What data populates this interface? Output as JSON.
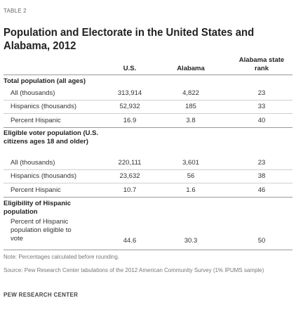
{
  "table_label": "TABLE 2",
  "title": "Population and Electorate in the United States and Alabama, 2012",
  "columns": [
    "U.S.",
    "Alabama",
    "Alabama state rank"
  ],
  "sections": [
    {
      "heading": "Total population (all ages)",
      "rows": [
        {
          "label": "All (thousands)",
          "us": "313,914",
          "alabama": "4,822",
          "rank": "23"
        },
        {
          "label": "Hispanics (thousands)",
          "us": "52,932",
          "alabama": "185",
          "rank": "33"
        },
        {
          "label": "Percent Hispanic",
          "us": "16.9",
          "alabama": "3.8",
          "rank": "40"
        }
      ]
    },
    {
      "heading": "Eligible voter population (U.S. citizens ages 18 and older)",
      "rows": [
        {
          "label": "All (thousands)",
          "us": "220,111",
          "alabama": "3,601",
          "rank": "23"
        },
        {
          "label": "Hispanics (thousands)",
          "us": "23,632",
          "alabama": "56",
          "rank": "38"
        },
        {
          "label": "Percent Hispanic",
          "us": "10.7",
          "alabama": "1.6",
          "rank": "46"
        }
      ]
    },
    {
      "heading": "Eligibility of Hispanic population",
      "rows": [
        {
          "label": "Percent of Hispanic population eligible to vote",
          "us": "44.6",
          "alabama": "30.3",
          "rank": "50"
        }
      ]
    }
  ],
  "note": "Note: Percentages calculated before rounding.",
  "source": "Source: Pew Research Center tabulations of the 2012 American Community Survey (1% IPUMS sample)",
  "footer": "PEW RESEARCH CENTER"
}
